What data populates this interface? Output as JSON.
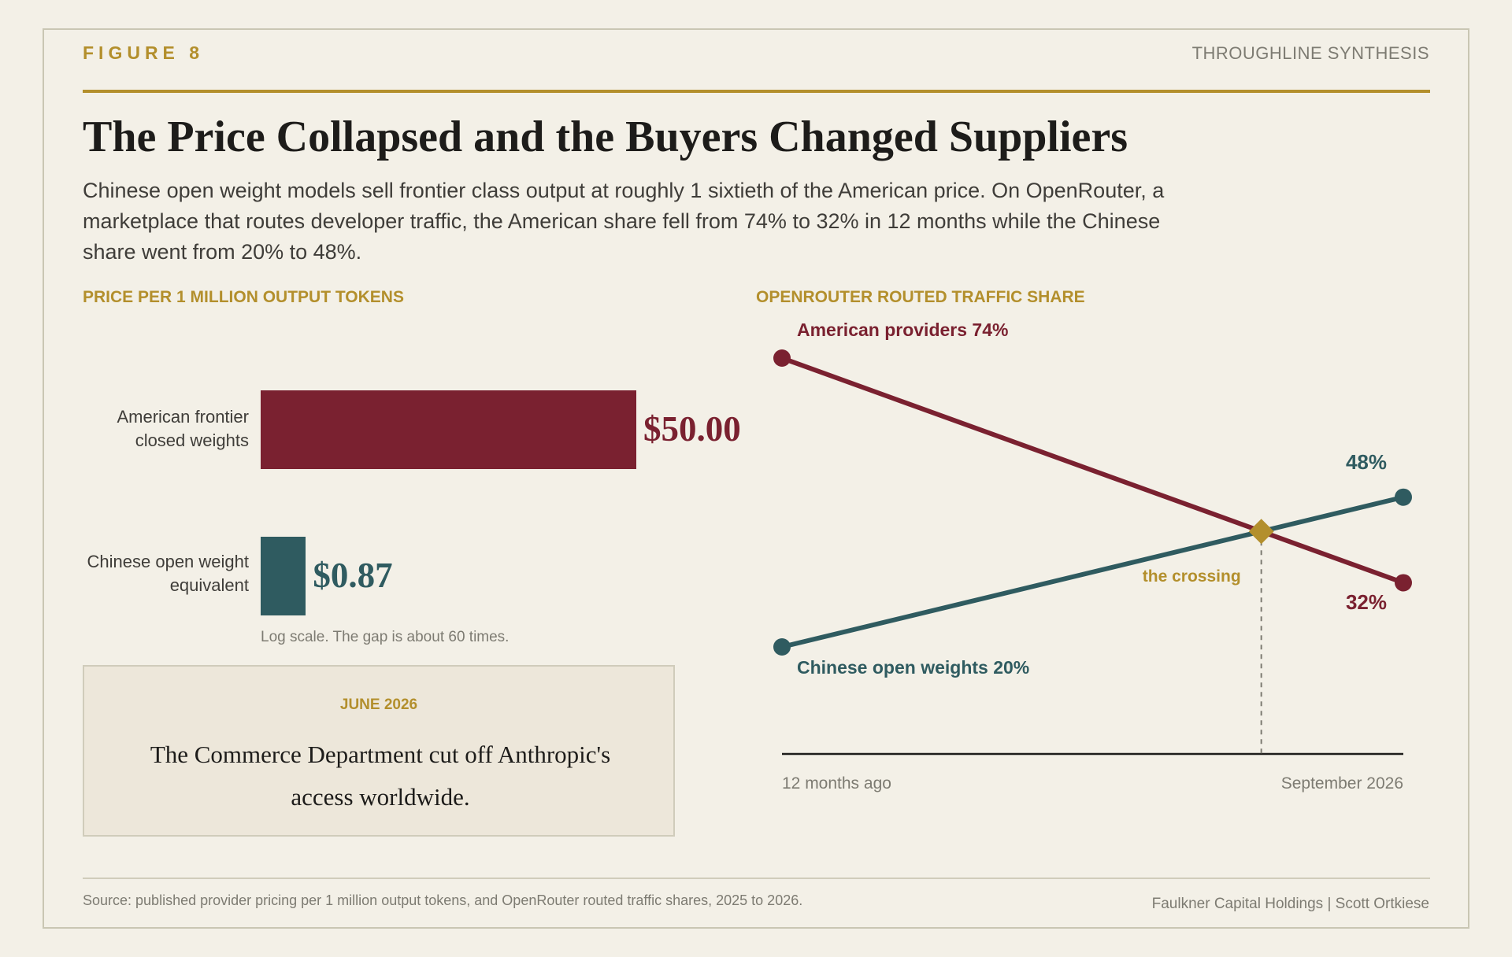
{
  "header": {
    "figure_label": "FIGURE 8",
    "brand": "THROUGHLINE SYNTHESIS",
    "title": "The Price Collapsed and the Buyers Changed Suppliers",
    "subtitle": "Chinese open weight models sell frontier class output at roughly 1 sixtieth of the American price. On OpenRouter, a marketplace that routes developer traffic, the American share fell from 74% to 32% in 12 months while the Chinese share went from 20% to 48%."
  },
  "colors": {
    "american": "#7a2130",
    "chinese": "#2f5b60",
    "accent": "#b38f2c",
    "axis": "#1d1c1a"
  },
  "chart_data": [
    {
      "type": "bar",
      "orientation": "horizontal",
      "title": "PRICE PER 1 MILLION OUTPUT TOKENS",
      "scale": "log",
      "categories": [
        "American frontier closed weights",
        "Chinese open weight equivalent"
      ],
      "category_lines": [
        [
          "American frontier",
          "closed weights"
        ],
        [
          "Chinese open weight",
          "equivalent"
        ]
      ],
      "values": [
        50.0,
        0.87
      ],
      "value_labels": [
        "$50.00",
        "$0.87"
      ],
      "note": "Log scale. The gap is about 60 times."
    },
    {
      "type": "line",
      "title": "OPENROUTER ROUTED TRAFFIC SHARE",
      "x_labels": [
        "12 months ago",
        "September 2026"
      ],
      "series": [
        {
          "name": "American providers",
          "values": [
            74,
            32
          ],
          "start_label": "74%",
          "end_label": "32%"
        },
        {
          "name": "Chinese open weights",
          "values": [
            20,
            48
          ],
          "start_label": "20%",
          "end_label": "48%"
        }
      ],
      "crossing_label": "the crossing"
    }
  ],
  "event": {
    "date": "JUNE 2026",
    "text": "The Commerce Department cut off Anthropic's access worldwide."
  },
  "footer": {
    "source": "Source: published provider pricing per 1 million output tokens, and OpenRouter routed traffic shares, 2025 to 2026.",
    "credit": "Faulkner Capital Holdings | Scott Ortkiese"
  }
}
